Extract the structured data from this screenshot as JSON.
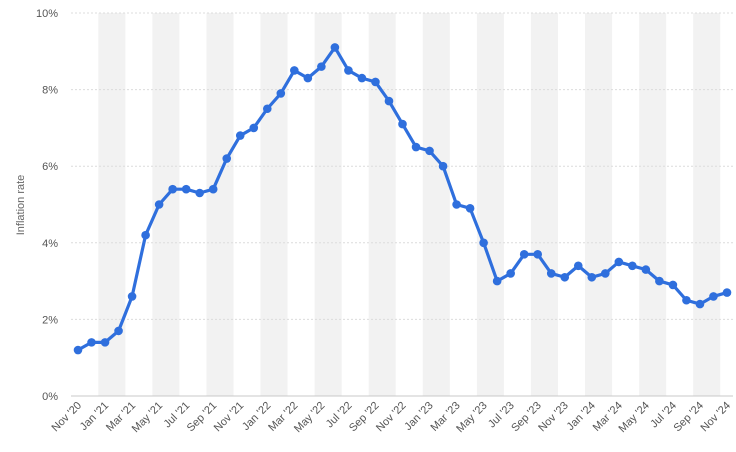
{
  "chart_data": {
    "type": "line",
    "title": "",
    "xlabel": "",
    "ylabel": "Inflation rate",
    "y_unit": "%",
    "ylim": [
      0,
      10
    ],
    "yticks": [
      0,
      2,
      4,
      6,
      8,
      10
    ],
    "ytick_labels": [
      "0%",
      "2%",
      "4%",
      "6%",
      "8%",
      "10%"
    ],
    "grid": "horizontal dashed",
    "alternating_column_bands": true,
    "line_color": "#2f6fdd",
    "band_color": "#f2f2f2",
    "x": [
      "Nov '20",
      "Dec '20",
      "Jan '21",
      "Feb '21",
      "Mar '21",
      "Apr '21",
      "May '21",
      "Jun '21",
      "Jul '21",
      "Aug '21",
      "Sep '21",
      "Oct '21",
      "Nov '21",
      "Dec '21",
      "Jan '22",
      "Feb '22",
      "Mar '22",
      "Apr '22",
      "May '22",
      "Jun '22",
      "Jul '22",
      "Aug '22",
      "Sep '22",
      "Oct '22",
      "Nov '22",
      "Dec '22",
      "Jan '23",
      "Feb '23",
      "Mar '23",
      "Apr '23",
      "May '23",
      "Jun '23",
      "Jul '23",
      "Aug '23",
      "Sep '23",
      "Oct '23",
      "Nov '23",
      "Dec '23",
      "Jan '24",
      "Feb '24",
      "Mar '24",
      "Apr '24",
      "May '24",
      "Jun '24",
      "Jul '24",
      "Aug '24",
      "Sep '24",
      "Oct '24",
      "Nov '24"
    ],
    "xtick_labels": [
      "Nov '20",
      "Jan '21",
      "Mar '21",
      "May '21",
      "Jul '21",
      "Sep '21",
      "Nov '21",
      "Jan '22",
      "Mar '22",
      "May '22",
      "Jul '22",
      "Sep '22",
      "Nov '22",
      "Jan '23",
      "Mar '23",
      "May '23",
      "Jul '23",
      "Sep '23",
      "Nov '23",
      "Jan '24",
      "Mar '24",
      "May '24",
      "Jul '24",
      "Sep '24",
      "Nov '24"
    ],
    "series": [
      {
        "values": [
          1.2,
          1.4,
          1.4,
          1.7,
          2.6,
          4.2,
          5.0,
          5.4,
          5.4,
          5.3,
          5.4,
          6.2,
          6.8,
          7.0,
          7.5,
          7.9,
          8.5,
          8.3,
          8.6,
          9.1,
          8.5,
          8.3,
          8.2,
          7.7,
          7.1,
          6.5,
          6.4,
          6.0,
          5.0,
          4.9,
          4.0,
          3.0,
          3.2,
          3.7,
          3.7,
          3.2,
          3.1,
          3.4,
          3.1,
          3.2,
          3.5,
          3.4,
          3.3,
          3.0,
          2.9,
          2.5,
          2.4,
          2.6,
          2.7
        ]
      }
    ]
  }
}
